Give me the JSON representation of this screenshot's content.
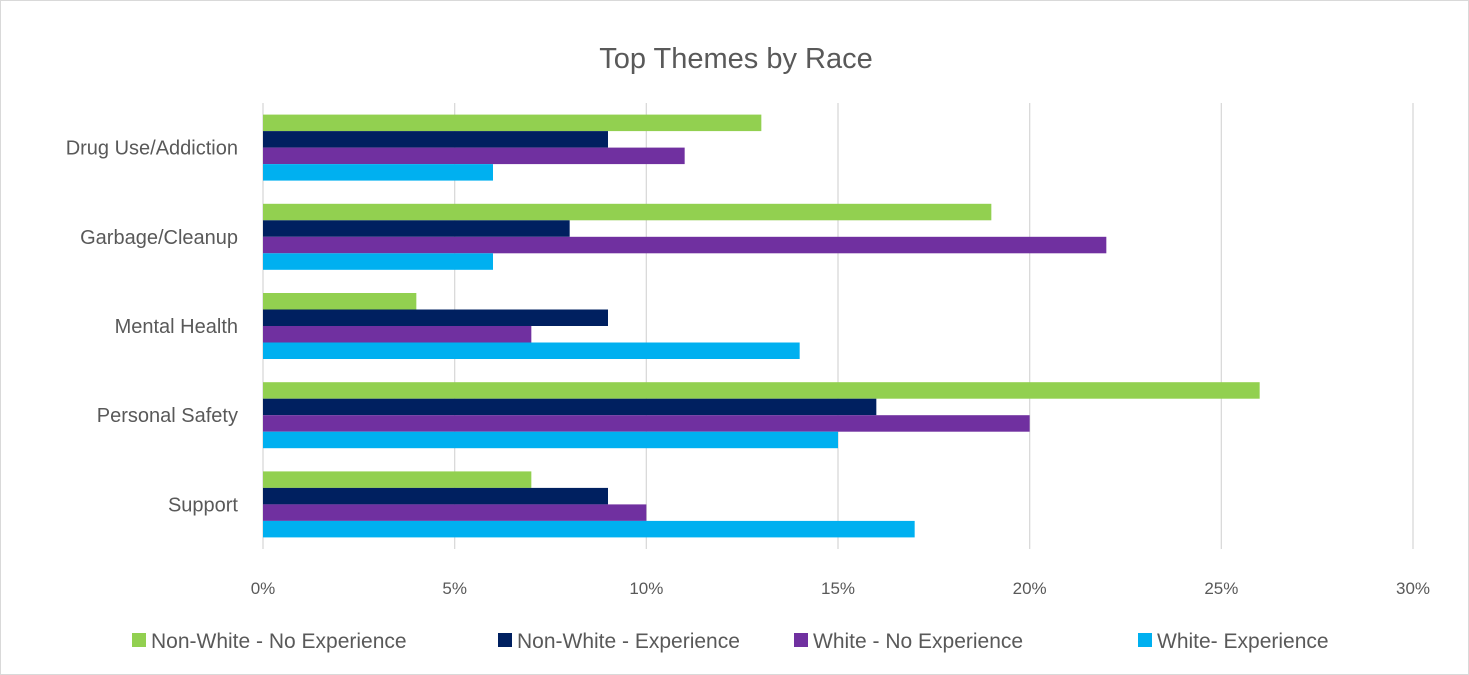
{
  "chart_data": {
    "type": "bar",
    "orientation": "horizontal",
    "title": "Top Themes by Race",
    "xlabel": "",
    "ylabel": "",
    "categories": [
      "Drug Use/Addiction",
      "Garbage/Cleanup",
      "Mental Health",
      "Personal Safety",
      "Support"
    ],
    "xlim": [
      0,
      30
    ],
    "x_ticks": [
      "0%",
      "5%",
      "10%",
      "15%",
      "20%",
      "25%",
      "30%"
    ],
    "grid": true,
    "legend_position": "bottom",
    "series": [
      {
        "name": "Non-White - No Experience",
        "color": "#92d050",
        "values": [
          13,
          19,
          4,
          26,
          7
        ]
      },
      {
        "name": "Non-White - Experience",
        "color": "#002060",
        "values": [
          9,
          8,
          9,
          16,
          9
        ]
      },
      {
        "name": "White - No Experience",
        "color": "#7030a0",
        "values": [
          11,
          22,
          7,
          20,
          10
        ]
      },
      {
        "name": "White- Experience",
        "color": "#00b0f0",
        "values": [
          6,
          6,
          14,
          15,
          17
        ]
      }
    ]
  }
}
